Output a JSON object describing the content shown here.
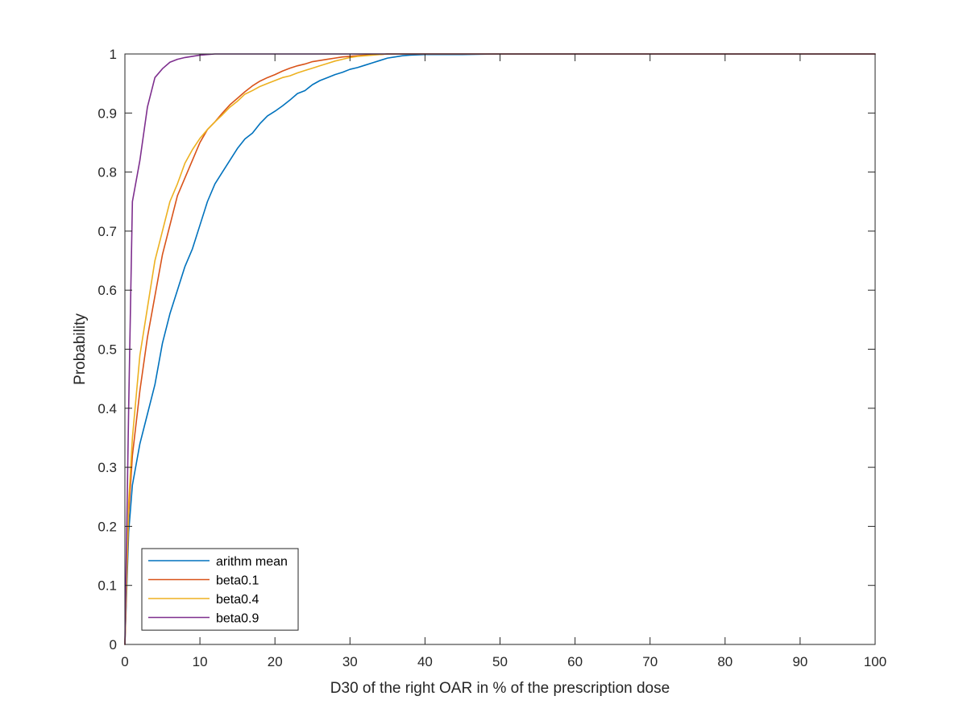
{
  "chart_data": {
    "type": "line",
    "title": "",
    "xlabel": "D30 of the right OAR in % of the prescription dose",
    "ylabel": "Probability",
    "xlim": [
      0,
      100
    ],
    "ylim": [
      0,
      1
    ],
    "xticks": [
      0,
      10,
      20,
      30,
      40,
      50,
      60,
      70,
      80,
      90,
      100
    ],
    "yticks": [
      0,
      0.1,
      0.2,
      0.3,
      0.4,
      0.5,
      0.6,
      0.7,
      0.8,
      0.9,
      1
    ],
    "xtick_labels": [
      "0",
      "10",
      "20",
      "30",
      "40",
      "50",
      "60",
      "70",
      "80",
      "90",
      "100"
    ],
    "ytick_labels": [
      "0",
      "0.1",
      "0.2",
      "0.3",
      "0.4",
      "0.5",
      "0.6",
      "0.7",
      "0.8",
      "0.9",
      "1"
    ],
    "grid": false,
    "legend_position": "bottom-left",
    "series": [
      {
        "name": "arithm mean",
        "color": "#0072BD",
        "x": [
          0,
          0.5,
          1,
          2,
          3,
          4,
          5,
          6,
          7,
          8,
          9,
          10,
          11,
          12,
          13,
          14,
          15,
          16,
          17,
          18,
          19,
          20,
          21,
          22,
          23,
          24,
          25,
          26,
          27,
          28,
          29,
          30,
          31,
          32,
          33,
          34,
          35,
          36,
          37,
          38,
          40,
          45,
          50,
          54,
          60,
          100
        ],
        "y": [
          0,
          0.19,
          0.27,
          0.34,
          0.39,
          0.44,
          0.51,
          0.56,
          0.6,
          0.64,
          0.67,
          0.71,
          0.75,
          0.78,
          0.8,
          0.82,
          0.84,
          0.856,
          0.866,
          0.882,
          0.895,
          0.903,
          0.912,
          0.922,
          0.933,
          0.938,
          0.948,
          0.955,
          0.96,
          0.965,
          0.969,
          0.974,
          0.977,
          0.981,
          0.985,
          0.989,
          0.993,
          0.995,
          0.997,
          0.998,
          0.999,
          0.999,
          1,
          1,
          1,
          1
        ]
      },
      {
        "name": "beta0.1",
        "color": "#D95319",
        "x": [
          0,
          0.5,
          1,
          2,
          3,
          4,
          5,
          6,
          7,
          8,
          9,
          10,
          11,
          12,
          13,
          14,
          15,
          16,
          17,
          18,
          19,
          20,
          21,
          22,
          23,
          24,
          25,
          26,
          27,
          28,
          29,
          30,
          31,
          32,
          33,
          34,
          35,
          36,
          37,
          40,
          100
        ],
        "y": [
          0,
          0.22,
          0.32,
          0.43,
          0.52,
          0.59,
          0.66,
          0.71,
          0.76,
          0.79,
          0.82,
          0.85,
          0.872,
          0.885,
          0.9,
          0.914,
          0.925,
          0.936,
          0.946,
          0.954,
          0.96,
          0.965,
          0.971,
          0.976,
          0.98,
          0.983,
          0.987,
          0.989,
          0.991,
          0.993,
          0.995,
          0.996,
          0.997,
          0.998,
          0.999,
          0.999,
          1,
          1,
          1,
          1,
          1
        ]
      },
      {
        "name": "beta0.4",
        "color": "#EDB120",
        "x": [
          0,
          0.5,
          1,
          2,
          3,
          4,
          5,
          6,
          7,
          8,
          9,
          10,
          11,
          12,
          13,
          14,
          15,
          16,
          17,
          18,
          19,
          20,
          21,
          22,
          23,
          24,
          25,
          26,
          27,
          28,
          29,
          30,
          31,
          32,
          33,
          34,
          35,
          36,
          37,
          40,
          100
        ],
        "y": [
          0,
          0.24,
          0.35,
          0.49,
          0.57,
          0.65,
          0.7,
          0.75,
          0.78,
          0.815,
          0.838,
          0.857,
          0.872,
          0.885,
          0.897,
          0.91,
          0.92,
          0.932,
          0.938,
          0.945,
          0.95,
          0.955,
          0.96,
          0.963,
          0.968,
          0.972,
          0.976,
          0.98,
          0.984,
          0.988,
          0.991,
          0.994,
          0.996,
          0.997,
          0.998,
          0.999,
          1,
          1,
          1,
          1,
          1
        ]
      },
      {
        "name": "beta0.9",
        "color": "#7E2F8E",
        "x": [
          0,
          0.5,
          1,
          2,
          3,
          4,
          5,
          6,
          7,
          8,
          9,
          10,
          11,
          12,
          13,
          15,
          20,
          100
        ],
        "y": [
          0,
          0.4,
          0.75,
          0.82,
          0.91,
          0.96,
          0.975,
          0.986,
          0.991,
          0.994,
          0.996,
          0.998,
          0.999,
          1,
          1,
          1,
          1,
          1
        ]
      }
    ]
  }
}
